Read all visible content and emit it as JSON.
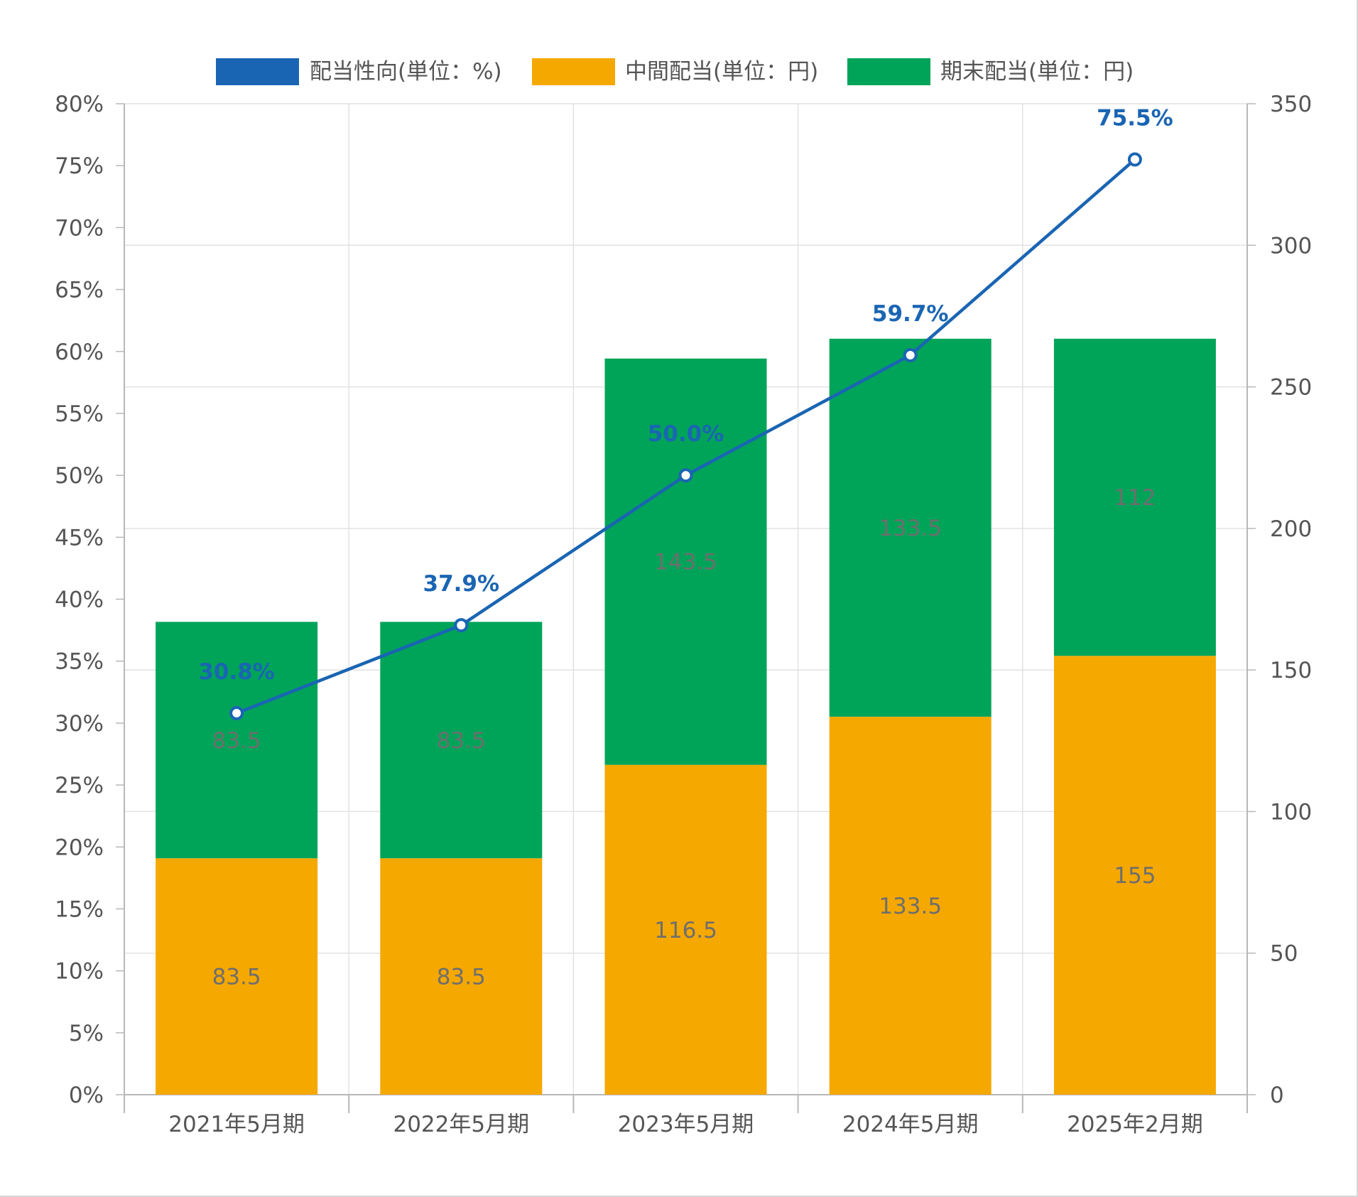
{
  "colors": {
    "payout": "#1a65b3",
    "interim": "#f5a800",
    "yearend": "#00a459",
    "grid": "#e2e2e2",
    "axis": "#b8b8b8",
    "tick_text": "#555555",
    "bar_label": "#6e6e6e"
  },
  "chart_data": {
    "type": "bar",
    "stacked": true,
    "categories": [
      "2021年5月期",
      "2022年5月期",
      "2023年5月期",
      "2024年5月期",
      "2025年2月期"
    ],
    "series": [
      {
        "name": "中間配当(単位：円)",
        "axis": "right",
        "type": "bar",
        "values": [
          83.5,
          83.5,
          116.5,
          133.5,
          155
        ],
        "labels": [
          "83.5",
          "83.5",
          "116.5",
          "133.5",
          "155"
        ]
      },
      {
        "name": "期末配当(単位：円)",
        "axis": "right",
        "type": "bar",
        "values": [
          83.5,
          83.5,
          143.5,
          133.5,
          112
        ],
        "labels": [
          "83.5",
          "83.5",
          "143.5",
          "133.5",
          "112"
        ]
      },
      {
        "name": "配当性向(単位：%)",
        "axis": "left",
        "type": "line",
        "values": [
          30.8,
          37.9,
          50.0,
          59.7,
          75.5
        ],
        "labels": [
          "30.8%",
          "37.9%",
          "50.0%",
          "59.7%",
          "75.5%"
        ]
      }
    ],
    "legend_order": [
      "配当性向(単位：%)",
      "中間配当(単位：円)",
      "期末配当(単位：円)"
    ],
    "legend_position": "top",
    "y_left": {
      "ylim": [
        0,
        80
      ],
      "ticks": [
        "0%",
        "5%",
        "10%",
        "15%",
        "20%",
        "25%",
        "30%",
        "35%",
        "40%",
        "45%",
        "50%",
        "55%",
        "60%",
        "65%",
        "70%",
        "75%",
        "80%"
      ]
    },
    "y_right": {
      "ylim": [
        0,
        350
      ],
      "ticks": [
        "0",
        "50",
        "100",
        "150",
        "200",
        "250",
        "300",
        "350"
      ]
    },
    "grid": true
  }
}
